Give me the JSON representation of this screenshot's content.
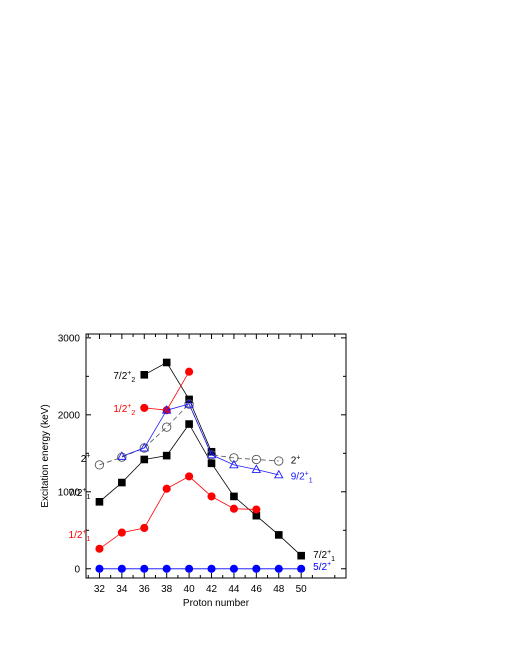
{
  "chart_data": {
    "type": "line",
    "xlabel": "Proton number",
    "ylabel": "Excitation energy (keV)",
    "xlim": [
      30.8,
      54
    ],
    "ylim": [
      -120,
      3050
    ],
    "xticks": [
      32,
      34,
      36,
      38,
      40,
      42,
      44,
      46,
      48,
      50
    ],
    "yticks": [
      0,
      1000,
      2000,
      3000
    ],
    "grid": false,
    "series": [
      {
        "name": "7/2+1",
        "color": "#000000",
        "marker": "square",
        "filled": true,
        "dashed": false,
        "points": [
          [
            32,
            870
          ],
          [
            34,
            1120
          ],
          [
            36,
            1420
          ],
          [
            38,
            1470
          ],
          [
            40,
            1880
          ],
          [
            42,
            1370
          ],
          [
            44,
            940
          ],
          [
            46,
            690
          ],
          [
            48,
            440
          ],
          [
            50,
            170
          ]
        ]
      },
      {
        "name": "7/2+2",
        "color": "#000000",
        "marker": "square",
        "filled": true,
        "dashed": false,
        "points": [
          [
            36,
            2520
          ],
          [
            38,
            2680
          ],
          [
            40,
            2200
          ],
          [
            42,
            1520
          ]
        ]
      },
      {
        "name": "1/2+1",
        "color": "#ff0000",
        "marker": "circle",
        "filled": true,
        "dashed": false,
        "points": [
          [
            32,
            260
          ],
          [
            34,
            470
          ],
          [
            36,
            530
          ],
          [
            38,
            1040
          ],
          [
            40,
            1200
          ],
          [
            42,
            940
          ],
          [
            44,
            780
          ],
          [
            46,
            770
          ]
        ]
      },
      {
        "name": "1/2+2",
        "color": "#ff0000",
        "marker": "circle",
        "filled": true,
        "dashed": false,
        "points": [
          [
            36,
            2090
          ],
          [
            38,
            2060
          ],
          [
            40,
            2560
          ]
        ]
      },
      {
        "name": "2+",
        "color": "#555555",
        "marker": "circle",
        "filled": false,
        "dashed": true,
        "points": [
          [
            32,
            1350
          ],
          [
            34,
            1450
          ],
          [
            36,
            1570
          ],
          [
            38,
            1840
          ],
          [
            40,
            2140
          ],
          [
            42,
            1480
          ],
          [
            44,
            1440
          ],
          [
            46,
            1420
          ],
          [
            48,
            1400
          ]
        ]
      },
      {
        "name": "9/2+1",
        "color": "#1a1aff",
        "marker": "triangle",
        "filled": false,
        "dashed": false,
        "points": [
          [
            34,
            1460
          ],
          [
            36,
            1570
          ],
          [
            38,
            2060
          ],
          [
            40,
            2140
          ],
          [
            42,
            1480
          ],
          [
            44,
            1350
          ],
          [
            46,
            1290
          ],
          [
            48,
            1220
          ]
        ]
      },
      {
        "name": "5/2+",
        "color": "#0000ff",
        "marker": "circle",
        "filled": true,
        "dashed": false,
        "points": [
          [
            32,
            0
          ],
          [
            34,
            0
          ],
          [
            36,
            0
          ],
          [
            38,
            0
          ],
          [
            40,
            0
          ],
          [
            42,
            0
          ],
          [
            44,
            0
          ],
          [
            46,
            0
          ],
          [
            48,
            0
          ],
          [
            50,
            0
          ]
        ]
      }
    ],
    "annotations": [
      {
        "main": "7/2",
        "sup": "+",
        "sub": "2",
        "color": "#000000",
        "x": 36,
        "y": 2520,
        "side": "left"
      },
      {
        "main": "1/2",
        "sup": "+",
        "sub": "2",
        "color": "#ff0000",
        "x": 36,
        "y": 2090,
        "side": "left"
      },
      {
        "main": "2",
        "sup": "+",
        "sub": "",
        "color": "#000000",
        "x": 32,
        "y": 1440,
        "side": "left"
      },
      {
        "main": "7/2",
        "sup": "+",
        "sub": "1",
        "color": "#000000",
        "x": 32,
        "y": 1000,
        "side": "left"
      },
      {
        "main": "1/2",
        "sup": "+",
        "sub": "1",
        "color": "#ff0000",
        "x": 32,
        "y": 450,
        "side": "left"
      },
      {
        "main": "2",
        "sup": "+",
        "sub": "",
        "color": "#000000",
        "x": 48,
        "y": 1420,
        "side": "right"
      },
      {
        "main": "9/2",
        "sup": "+",
        "sub": "1",
        "color": "#1a1aff",
        "x": 48,
        "y": 1210,
        "side": "right"
      },
      {
        "main": "7/2",
        "sup": "+",
        "sub": "1",
        "color": "#000000",
        "x": 50,
        "y": 190,
        "side": "right"
      },
      {
        "main": "5/2",
        "sup": "+",
        "sub": "",
        "color": "#0000ff",
        "x": 50,
        "y": 35,
        "side": "right"
      }
    ]
  }
}
